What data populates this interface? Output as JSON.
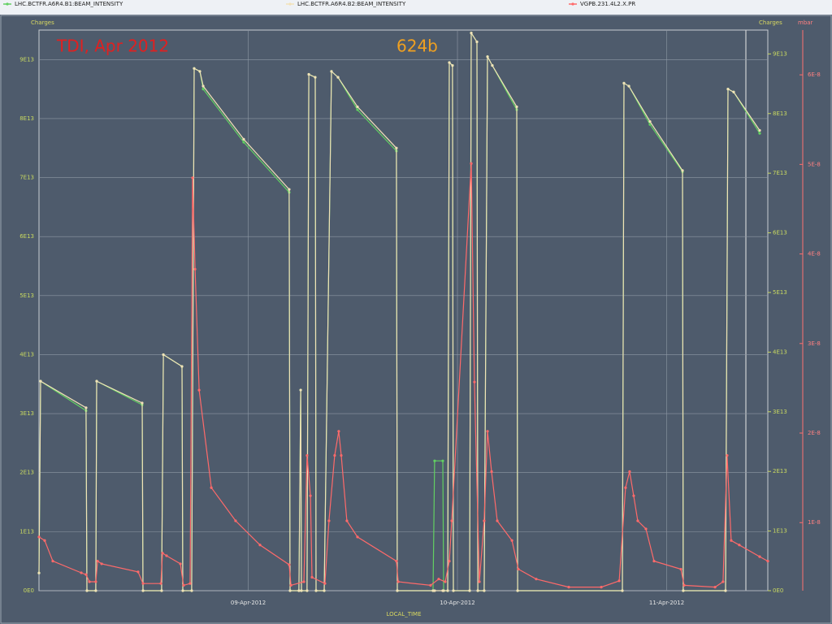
{
  "chart_data": {
    "type": "line",
    "annotations": [
      "TDI, Apr 2012",
      "624b"
    ],
    "y_label": "Charges",
    "y3_label": "Charges",
    "y2_label": "mbar",
    "x_label": "LOCAL_TIME",
    "grid": true,
    "xlim": [
      "2012-04-08 00:00",
      "2012-04-11 11:36"
    ],
    "xticks": [
      {
        "value": "2012-04-09 00:00",
        "label": "09-Apr-2012"
      },
      {
        "value": "2012-04-10 00:00",
        "label": "10-Apr-2012"
      },
      {
        "value": "2012-04-11 00:00",
        "label": "11-Apr-2012"
      }
    ],
    "ylim": [
      0,
      95000000000000.0
    ],
    "yticks": [
      {
        "value": 0,
        "label": "0E0"
      },
      {
        "value": 10000000000000.0,
        "label": "1E13"
      },
      {
        "value": 20000000000000.0,
        "label": "2E13"
      },
      {
        "value": 30000000000000.0,
        "label": "3E13"
      },
      {
        "value": 40000000000000.0,
        "label": "4E13"
      },
      {
        "value": 50000000000000.0,
        "label": "5E13"
      },
      {
        "value": 60000000000000.0,
        "label": "6E13"
      },
      {
        "value": 70000000000000.0,
        "label": "7E13"
      },
      {
        "value": 80000000000000.0,
        "label": "8E13"
      },
      {
        "value": 90000000000000.0,
        "label": "9E13"
      }
    ],
    "y3lim": [
      0,
      94000000000000.0
    ],
    "y3ticks": [
      {
        "value": 0,
        "label": "0E0"
      },
      {
        "value": 10000000000000.0,
        "label": "1E13"
      },
      {
        "value": 20000000000000.0,
        "label": "2E13"
      },
      {
        "value": 30000000000000.0,
        "label": "3E13"
      },
      {
        "value": 40000000000000.0,
        "label": "4E13"
      },
      {
        "value": 50000000000000.0,
        "label": "5E13"
      },
      {
        "value": 60000000000000.0,
        "label": "6E13"
      },
      {
        "value": 70000000000000.0,
        "label": "7E13"
      },
      {
        "value": 80000000000000.0,
        "label": "8E13"
      },
      {
        "value": 90000000000000.0,
        "label": "9E13"
      }
    ],
    "y2lim": [
      2.4e-09,
      6.5e-08
    ],
    "y2ticks": [
      {
        "value": 1e-08,
        "label": "1E-8"
      },
      {
        "value": 2e-08,
        "label": "2E-8"
      },
      {
        "value": 3e-08,
        "label": "3E-8"
      },
      {
        "value": 4e-08,
        "label": "4E-8"
      },
      {
        "value": 5e-08,
        "label": "5E-8"
      },
      {
        "value": 6e-08,
        "label": "6E-8"
      }
    ],
    "series": [
      {
        "name": "LHC.BCTFR.A6R4.B1:BEAM_INTENSITY",
        "color": "#62d062",
        "axis": "y",
        "x": [
          "2012-04-08 00:00",
          "2012-04-08 00:11",
          "2012-04-08 05:24",
          "2012-04-08 05:30",
          "2012-04-08 06:31",
          "2012-04-08 06:37",
          "2012-04-08 11:50",
          "2012-04-08 11:56",
          "2012-04-08 14:04",
          "2012-04-08 14:16",
          "2012-04-08 16:24",
          "2012-04-08 16:30",
          "2012-04-08 17:31",
          "2012-04-08 17:48",
          "2012-04-08 18:27",
          "2012-04-08 18:50",
          "2012-04-08 23:29",
          "2012-04-09 04:42",
          "2012-04-09 04:48",
          "2012-04-09 05:49",
          "2012-04-09 06:01",
          "2012-04-09 06:06",
          "2012-04-09 06:45",
          "2012-04-09 06:57",
          "2012-04-09 07:41",
          "2012-04-09 07:47",
          "2012-04-09 08:43",
          "2012-04-09 09:33",
          "2012-04-09 10:18",
          "2012-04-09 12:32",
          "2012-04-09 17:00",
          "2012-04-09 17:06",
          "2012-04-09 21:12",
          "2012-04-09 21:23",
          "2012-04-09 22:19",
          "2012-04-09 22:25",
          "2012-04-09 22:53",
          "2012-04-09 23:04",
          "2012-04-09 23:26",
          "2012-04-09 23:32",
          "2012-04-10 01:24",
          "2012-04-10 01:35",
          "2012-04-10 02:14",
          "2012-04-10 02:20",
          "2012-04-10 03:04",
          "2012-04-10 03:27",
          "2012-04-10 04:00",
          "2012-04-10 06:48",
          "2012-04-10 06:54",
          "2012-04-10 18:55",
          "2012-04-10 19:06",
          "2012-04-10 19:40",
          "2012-04-10 22:05",
          "2012-04-11 01:49",
          "2012-04-11 01:54",
          "2012-04-11 06:45",
          "2012-04-11 07:02",
          "2012-04-11 07:41",
          "2012-04-11 10:40"
        ],
        "values": [
          3000000000000.0,
          35500000000000.0,
          30500000000000.0,
          0,
          0,
          35500000000000.0,
          31500000000000.0,
          0,
          0,
          40000000000000.0,
          38000000000000.0,
          0,
          0,
          88500000000000.0,
          88000000000000.0,
          85000000000000.0,
          76000000000000.0,
          67500000000000.0,
          0,
          0,
          34000000000000.0,
          0,
          0,
          87500000000000.0,
          87000000000000.0,
          0,
          0,
          88000000000000.0,
          87000000000000.0,
          81500000000000.0,
          74500000000000.0,
          0,
          0,
          22000000000000.0,
          22000000000000.0,
          0,
          0,
          89500000000000.0,
          89000000000000.0,
          0,
          0,
          94500000000000.0,
          93000000000000.0,
          0,
          0,
          90500000000000.0,
          89000000000000.0,
          81500000000000.0,
          0,
          0,
          86000000000000.0,
          85500000000000.0,
          79000000000000.0,
          71000000000000.0,
          0,
          0,
          85000000000000.0,
          84500000000000.0,
          77500000000000.0
        ]
      },
      {
        "name": "LHC.BCTFR.A6R4.B2:BEAM_INTENSITY",
        "color": "#f2e2b8",
        "axis": "y",
        "x": [
          "2012-04-08 00:00",
          "2012-04-08 00:11",
          "2012-04-08 05:24",
          "2012-04-08 05:30",
          "2012-04-08 06:31",
          "2012-04-08 06:37",
          "2012-04-08 11:50",
          "2012-04-08 11:56",
          "2012-04-08 14:04",
          "2012-04-08 14:16",
          "2012-04-08 16:24",
          "2012-04-08 16:30",
          "2012-04-08 17:31",
          "2012-04-08 17:48",
          "2012-04-08 18:27",
          "2012-04-08 18:50",
          "2012-04-08 23:29",
          "2012-04-09 04:42",
          "2012-04-09 04:48",
          "2012-04-09 05:49",
          "2012-04-09 06:01",
          "2012-04-09 06:06",
          "2012-04-09 06:45",
          "2012-04-09 06:57",
          "2012-04-09 07:41",
          "2012-04-09 07:47",
          "2012-04-09 08:43",
          "2012-04-09 09:33",
          "2012-04-09 10:18",
          "2012-04-09 12:32",
          "2012-04-09 17:00",
          "2012-04-09 17:06",
          "2012-04-09 21:12",
          "2012-04-09 21:23",
          "2012-04-09 22:19",
          "2012-04-09 22:25",
          "2012-04-09 22:53",
          "2012-04-09 23:04",
          "2012-04-09 23:26",
          "2012-04-09 23:32",
          "2012-04-10 01:24",
          "2012-04-10 01:35",
          "2012-04-10 02:14",
          "2012-04-10 02:20",
          "2012-04-10 03:04",
          "2012-04-10 03:27",
          "2012-04-10 04:00",
          "2012-04-10 06:48",
          "2012-04-10 06:54",
          "2012-04-10 18:55",
          "2012-04-10 19:06",
          "2012-04-10 19:40",
          "2012-04-10 22:05",
          "2012-04-11 01:49",
          "2012-04-11 01:54",
          "2012-04-11 06:45",
          "2012-04-11 07:02",
          "2012-04-11 07:41",
          "2012-04-11 10:40"
        ],
        "values": [
          3000000000000.0,
          35500000000000.0,
          31000000000000.0,
          0,
          0,
          35500000000000.0,
          31800000000000.0,
          0,
          0,
          40000000000000.0,
          38000000000000.0,
          0,
          0,
          88500000000000.0,
          88000000000000.0,
          85500000000000.0,
          76500000000000.0,
          68000000000000.0,
          0,
          0,
          34000000000000.0,
          0,
          0,
          87500000000000.0,
          87000000000000.0,
          0,
          0,
          88000000000000.0,
          87000000000000.0,
          82000000000000.0,
          75000000000000.0,
          0,
          0,
          0,
          0,
          0,
          0,
          89500000000000.0,
          89000000000000.0,
          0,
          0,
          94500000000000.0,
          93000000000000.0,
          0,
          0,
          90500000000000.0,
          89000000000000.0,
          82000000000000.0,
          0,
          0,
          86000000000000.0,
          85500000000000.0,
          79500000000000.0,
          71200000000000.0,
          0,
          0,
          85000000000000.0,
          84500000000000.0,
          78000000000000.0
        ]
      },
      {
        "name": "VGPB.231.4L2.X.PR",
        "color": "#ff6a6a",
        "axis": "y2",
        "x": [
          "2012-04-08 00:00",
          "2012-04-08 00:39",
          "2012-04-08 01:35",
          "2012-04-08 04:51",
          "2012-04-08 05:24",
          "2012-04-08 05:47",
          "2012-04-08 06:31",
          "2012-04-08 06:43",
          "2012-04-08 07:11",
          "2012-04-08 11:22",
          "2012-04-08 11:56",
          "2012-04-08 13:59",
          "2012-04-08 14:10",
          "2012-04-08 14:38",
          "2012-04-08 16:13",
          "2012-04-08 16:35",
          "2012-04-08 17:20",
          "2012-04-08 17:37",
          "2012-04-08 17:54",
          "2012-04-08 18:22",
          "2012-04-08 19:46",
          "2012-04-08 22:33",
          "2012-04-09 01:21",
          "2012-04-09 04:42",
          "2012-04-09 04:54",
          "2012-04-09 06:23",
          "2012-04-09 06:45",
          "2012-04-09 07:08",
          "2012-04-09 07:19",
          "2012-04-09 08:48",
          "2012-04-09 09:16",
          "2012-04-09 09:55",
          "2012-04-09 10:23",
          "2012-04-09 10:40",
          "2012-04-09 11:19",
          "2012-04-09 12:32",
          "2012-04-09 17:00",
          "2012-04-09 17:12",
          "2012-04-09 20:55",
          "2012-04-09 21:51",
          "2012-04-09 22:36",
          "2012-04-09 23:04",
          "2012-04-09 23:21",
          "2012-04-10 01:35",
          "2012-04-10 01:57",
          "2012-04-10 02:31",
          "2012-04-10 03:04",
          "2012-04-10 03:27",
          "2012-04-10 03:55",
          "2012-04-10 04:34",
          "2012-04-10 06:15",
          "2012-04-10 06:59",
          "2012-04-10 09:02",
          "2012-04-10 12:46",
          "2012-04-10 16:30",
          "2012-04-10 18:33",
          "2012-04-10 19:17",
          "2012-04-10 19:45",
          "2012-04-10 20:13",
          "2012-04-10 20:41",
          "2012-04-10 21:37",
          "2012-04-10 22:33",
          "2012-04-11 01:38",
          "2012-04-11 02:00",
          "2012-04-11 05:33",
          "2012-04-11 06:28",
          "2012-04-11 06:56",
          "2012-04-11 07:24",
          "2012-04-11 08:20",
          "2012-04-11 10:40",
          "2012-04-11 11:36"
        ],
        "values": [
          8.4e-09,
          8e-09,
          5.7e-09,
          4.4e-09,
          4.2e-09,
          3.4e-09,
          3.4e-09,
          5.7e-09,
          5.4e-09,
          4.5e-09,
          3.2e-09,
          3.2e-09,
          6.6e-09,
          6.3e-09,
          5.4e-09,
          3e-09,
          3.2e-09,
          4.85e-08,
          3.83e-08,
          2.48e-08,
          1.39e-08,
          1.02e-08,
          7.5e-09,
          5.3e-09,
          3e-09,
          3.4e-09,
          1.75e-08,
          1.3e-08,
          3.9e-09,
          3.2e-09,
          1.02e-08,
          1.75e-08,
          2.02e-08,
          1.75e-08,
          1.02e-08,
          8.4e-09,
          5.7e-09,
          3.4e-09,
          3e-09,
          3.7e-09,
          3.4e-09,
          5.7e-09,
          1.02e-08,
          5.01e-08,
          2.57e-08,
          3.4e-09,
          1.02e-08,
          2.02e-08,
          1.57e-08,
          1.02e-08,
          8e-09,
          4.8e-09,
          3.7e-09,
          2.8e-09,
          2.8e-09,
          3.5e-09,
          1.39e-08,
          1.57e-08,
          1.3e-08,
          1.02e-08,
          9.3e-09,
          5.7e-09,
          4.8e-09,
          3e-09,
          2.8e-09,
          3.4e-09,
          1.75e-08,
          8e-09,
          7.5e-09,
          6.2e-09,
          5.7e-09
        ]
      }
    ]
  }
}
